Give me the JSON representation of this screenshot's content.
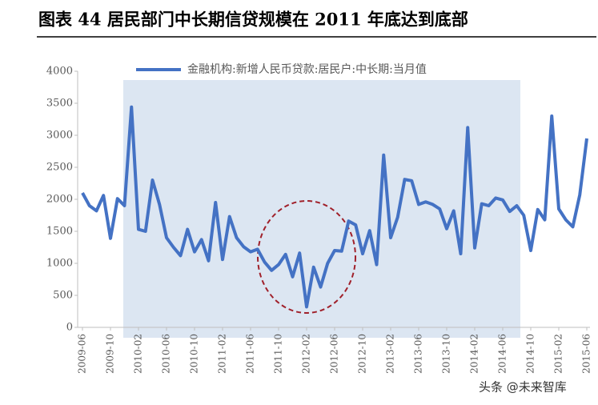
{
  "chart_data": {
    "type": "line",
    "title": "图表 44  居民部门中长期信贷规模在 2011 年底达到底部",
    "categories": [
      "2009-06",
      null,
      null,
      null,
      "2009-10",
      null,
      null,
      null,
      "2010-02",
      null,
      null,
      null,
      "2010-06",
      null,
      null,
      null,
      "2010-10",
      null,
      null,
      null,
      "2011-02",
      null,
      null,
      null,
      "2011-06",
      null,
      null,
      null,
      "2011-10",
      null,
      null,
      null,
      "2012-02",
      null,
      null,
      null,
      "2012-06",
      null,
      null,
      null,
      "2012-10",
      null,
      null,
      null,
      "2013-02",
      null,
      null,
      null,
      "2013-06",
      null,
      null,
      null,
      "2013-10",
      null,
      null,
      null,
      "2014-02",
      null,
      null,
      null,
      "2014-06",
      null,
      null,
      null,
      "2014-10",
      null,
      null,
      null,
      "2015-02",
      null,
      null,
      null,
      "2015-06"
    ],
    "series": [
      {
        "name": "金融机构:新增人民币贷款:居民户:中长期:当月值",
        "color": "#4472c4",
        "values": [
          2100,
          1900,
          1820,
          2060,
          1390,
          2010,
          1900,
          3440,
          1530,
          1500,
          2300,
          1920,
          1400,
          1250,
          1120,
          1530,
          1180,
          1370,
          1040,
          1950,
          1060,
          1730,
          1400,
          1260,
          1180,
          1220,
          1020,
          890,
          980,
          1140,
          790,
          1160,
          320,
          940,
          630,
          1000,
          1200,
          1190,
          1660,
          1600,
          1150,
          1510,
          980,
          2690,
          1400,
          1720,
          2310,
          2290,
          1920,
          1960,
          1920,
          1850,
          1540,
          1820,
          1150,
          3120,
          1240,
          1930,
          1900,
          2020,
          1990,
          1810,
          1900,
          1750,
          1200,
          1840,
          1680,
          3300,
          1850,
          1680,
          1570,
          2070,
          2950
        ]
      }
    ],
    "ylim": [
      0,
      4000
    ],
    "yticks": [
      0,
      500,
      1000,
      1500,
      2000,
      2500,
      3000,
      3500,
      4000
    ],
    "watermark": "头条 @未来智库"
  }
}
